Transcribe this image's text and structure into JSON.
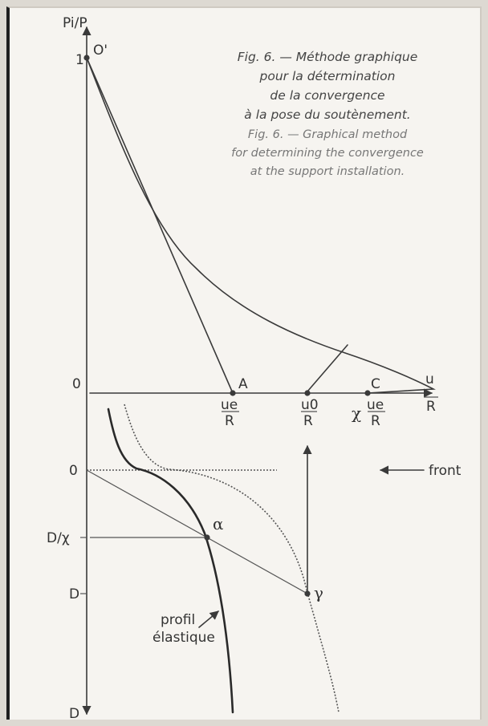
{
  "caption": {
    "french": [
      "Fig. 6. — Méthode graphique",
      "pour la détermination",
      "de la convergence",
      "à la pose du soutènement."
    ],
    "english": [
      "Fig. 6. — Graphical method",
      "for determining the convergence",
      "at the support installation."
    ]
  },
  "upper_plot": {
    "y_axis_label": "Pi/P",
    "y_tick_one": "1",
    "origin_label": "0",
    "point_O_prime": "O'",
    "point_A": "A",
    "point_C": "C",
    "x_labels": {
      "ue": "ue",
      "u0": "u0",
      "chi_prefix": "χ",
      "denominator_R": "R",
      "u_axis": "u"
    }
  },
  "lower_plot": {
    "label_zero": "0",
    "label_D_over_chi": "D/χ",
    "label_D": "D",
    "label_D_bottom": "D",
    "front_label": "front",
    "alpha": "α",
    "gamma": "γ",
    "profile_label": [
      "profil",
      "élastique"
    ]
  },
  "colors": {
    "ink": "#3a3a3a",
    "paper": "#f6f4f0",
    "frame": "#1f1f1f"
  }
}
